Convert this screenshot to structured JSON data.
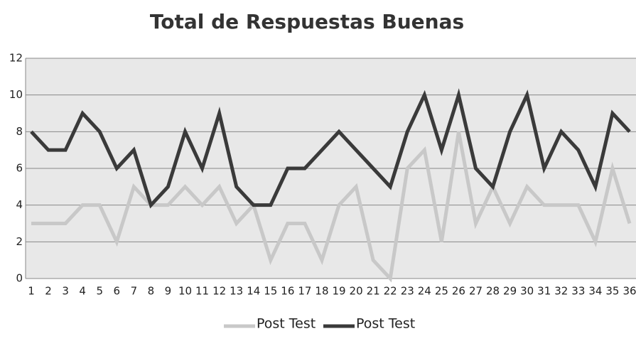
{
  "chart_data": {
    "type": "line",
    "title": "Total de Respuestas Buenas",
    "categories": [
      "1",
      "2",
      "3",
      "4",
      "5",
      "6",
      "7",
      "8",
      "9",
      "10",
      "11",
      "12",
      "13",
      "14",
      "15",
      "16",
      "17",
      "18",
      "19",
      "20",
      "21",
      "22",
      "23",
      "24",
      "25",
      "26",
      "27",
      "28",
      "29",
      "30",
      "31",
      "32",
      "33",
      "34",
      "35",
      "36"
    ],
    "series": [
      {
        "name": "Post Test",
        "color": "#c8c8c8",
        "values": [
          3,
          3,
          3,
          4,
          4,
          2,
          5,
          4,
          4,
          5,
          4,
          5,
          3,
          4,
          1,
          3,
          3,
          1,
          4,
          5,
          1,
          0,
          6,
          7,
          2,
          8,
          3,
          5,
          3,
          5,
          4,
          4,
          4,
          2,
          6,
          3
        ]
      },
      {
        "name": "Post Test",
        "color": "#3a3a3a",
        "values": [
          8,
          7,
          7,
          9,
          8,
          6,
          7,
          4,
          5,
          8,
          6,
          9,
          5,
          4,
          4,
          6,
          6,
          7,
          8,
          7,
          6,
          5,
          8,
          10,
          7,
          10,
          6,
          5,
          8,
          10,
          6,
          8,
          7,
          5,
          9,
          8
        ]
      }
    ],
    "ylim": [
      0,
      12
    ],
    "yticks": [
      0,
      2,
      4,
      6,
      8,
      10,
      12
    ],
    "grid": true
  }
}
